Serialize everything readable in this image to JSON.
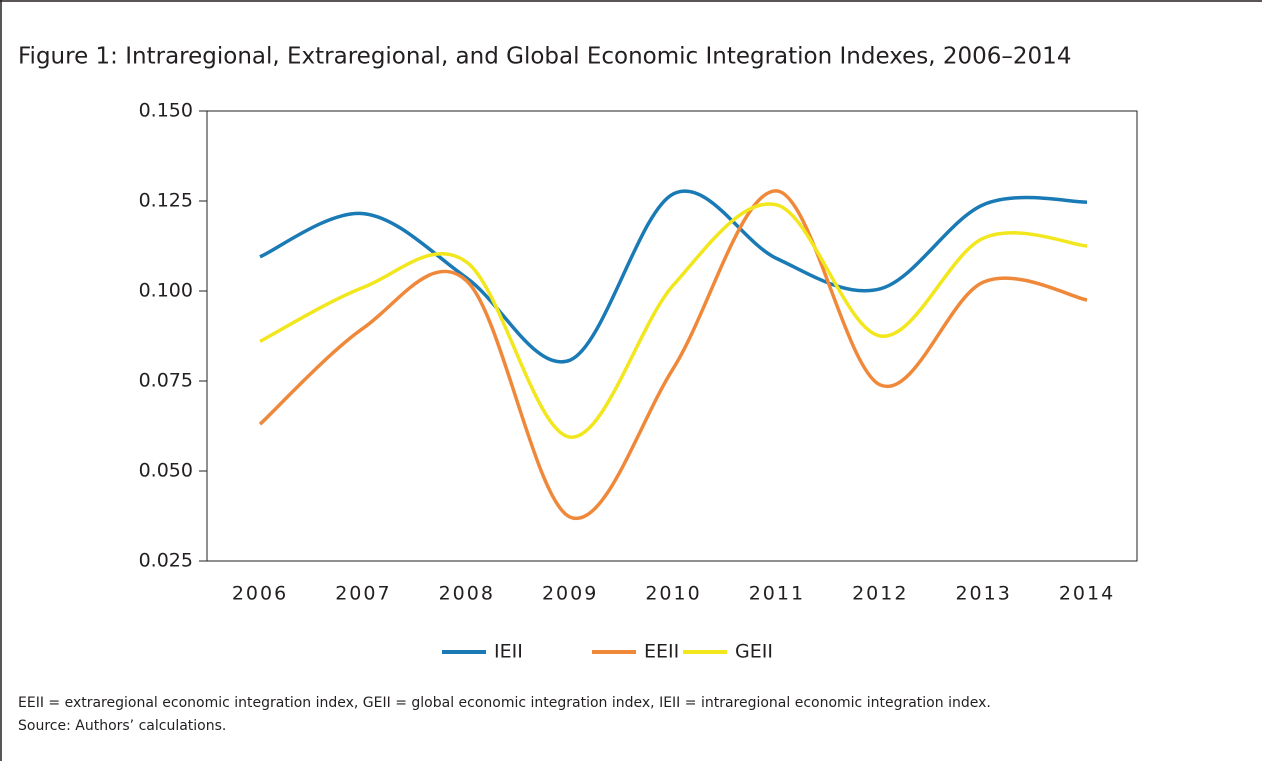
{
  "chart_data": {
    "type": "line",
    "title": "Figure 1:  Intraregional, Extraregional, and Global Economic Integration Indexes, 2006–2014",
    "categories": [
      "2006",
      "2007",
      "2008",
      "2009",
      "2010",
      "2011",
      "2012",
      "2013",
      "2014"
    ],
    "series": [
      {
        "name": "IEII",
        "color": "#1a7ab5",
        "values": [
          0.1095,
          0.1215,
          0.1036,
          0.0808,
          0.127,
          0.109,
          0.1006,
          0.124,
          0.1247
        ]
      },
      {
        "name": "EEII",
        "color": "#f0883a",
        "values": [
          0.063,
          0.0897,
          0.1028,
          0.0372,
          0.0786,
          0.1278,
          0.0739,
          0.1025,
          0.0975
        ]
      },
      {
        "name": "GEII",
        "color": "#f2e61c",
        "values": [
          0.086,
          0.101,
          0.108,
          0.0594,
          0.1017,
          0.1239,
          0.0875,
          0.1147,
          0.1125
        ]
      }
    ],
    "ylim": [
      0.025,
      0.15
    ],
    "yticks": [
      {
        "value": 0.025,
        "label": "0.025"
      },
      {
        "value": 0.05,
        "label": "0.050"
      },
      {
        "value": 0.075,
        "label": "0.075"
      },
      {
        "value": 0.1,
        "label": "0.100"
      },
      {
        "value": 0.125,
        "label": "0.125"
      },
      {
        "value": 0.15,
        "label": "0.150"
      }
    ],
    "legend": "bottom",
    "note": "EEII = extraregional economic integration index, GEII = global economic integration index, IEII = intraregional economic integration index.",
    "source": "Source: Authors’ calculations."
  }
}
